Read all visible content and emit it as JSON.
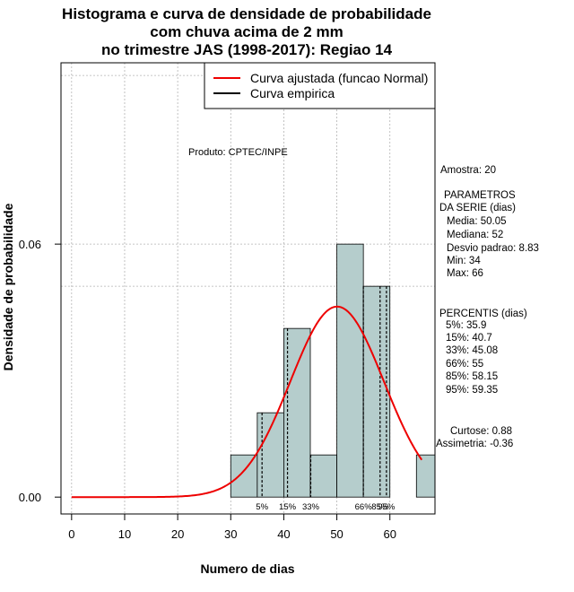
{
  "chart_data": {
    "type": "histogram",
    "title_lines": [
      "Histograma e curva de densidade de probabilidade",
      "com chuva acima de 2 mm",
      "no trimestre JAS (1998-2017): Regiao 14"
    ],
    "xlabel": "Numero de dias",
    "ylabel": "Densidade de probabilidade",
    "xlim": [
      -2,
      68.5
    ],
    "ylim": [
      -0.004,
      0.103
    ],
    "x_ticks": [
      0,
      10,
      20,
      30,
      40,
      50,
      60
    ],
    "y_ticks": [
      0.0,
      0.06
    ],
    "y_tick_labels": [
      "0.00",
      "0.06"
    ],
    "grid_x": [
      0,
      10,
      20,
      30,
      40,
      50,
      60
    ],
    "grid_y": [
      0.06,
      0.05,
      0.1
    ],
    "bins": [
      {
        "x0": 30,
        "x1": 35,
        "density": 0.01
      },
      {
        "x0": 35,
        "x1": 40,
        "density": 0.02
      },
      {
        "x0": 40,
        "x1": 45,
        "density": 0.04
      },
      {
        "x0": 45,
        "x1": 50,
        "density": 0.01
      },
      {
        "x0": 50,
        "x1": 55,
        "density": 0.06
      },
      {
        "x0": 55,
        "x1": 60,
        "density": 0.05
      },
      {
        "x0": 60,
        "x1": 65,
        "density": 0.0
      },
      {
        "x0": 65,
        "x1": 70,
        "density": 0.01
      }
    ],
    "bar_color": "#b5cdcc",
    "normal_fit": {
      "mean": 50.05,
      "sd": 8.83,
      "x_range": [
        0,
        66
      ],
      "color": "#ee0000"
    },
    "percentile_lines": [
      {
        "label": "5%",
        "x": 35.9
      },
      {
        "label": "15%",
        "x": 40.7
      },
      {
        "label": "33%",
        "x": 45.08
      },
      {
        "label": "66%",
        "x": 55
      },
      {
        "label": "85%",
        "x": 58.15
      },
      {
        "label": "95%",
        "x": 59.35
      }
    ],
    "legend": [
      {
        "label": "Curva ajustada (funcao Normal)",
        "color": "#ee0000"
      },
      {
        "label": "Curva empirica",
        "color": "#000000"
      }
    ],
    "legend_position": "top-right",
    "annotation": "Produto: CPTEC/INPE"
  },
  "stats": {
    "amostra": "Amostra: 20",
    "parametros_title": "PARAMETROS",
    "parametros_subtitle": "DA SERIE (dias)",
    "parametros": [
      "Media: 50.05",
      "Mediana: 52",
      "Desvio padrao: 8.83",
      "Min: 34",
      "Max: 66"
    ],
    "percentis_title": "PERCENTIS (dias)",
    "percentis": [
      "5%: 35.9",
      "15%: 40.7",
      "33%: 45.08",
      "66%: 55",
      "85%: 58.15",
      "95%: 59.35"
    ],
    "curtose": "Curtose: 0.88",
    "assimetria": "Assimetria: -0.36"
  }
}
